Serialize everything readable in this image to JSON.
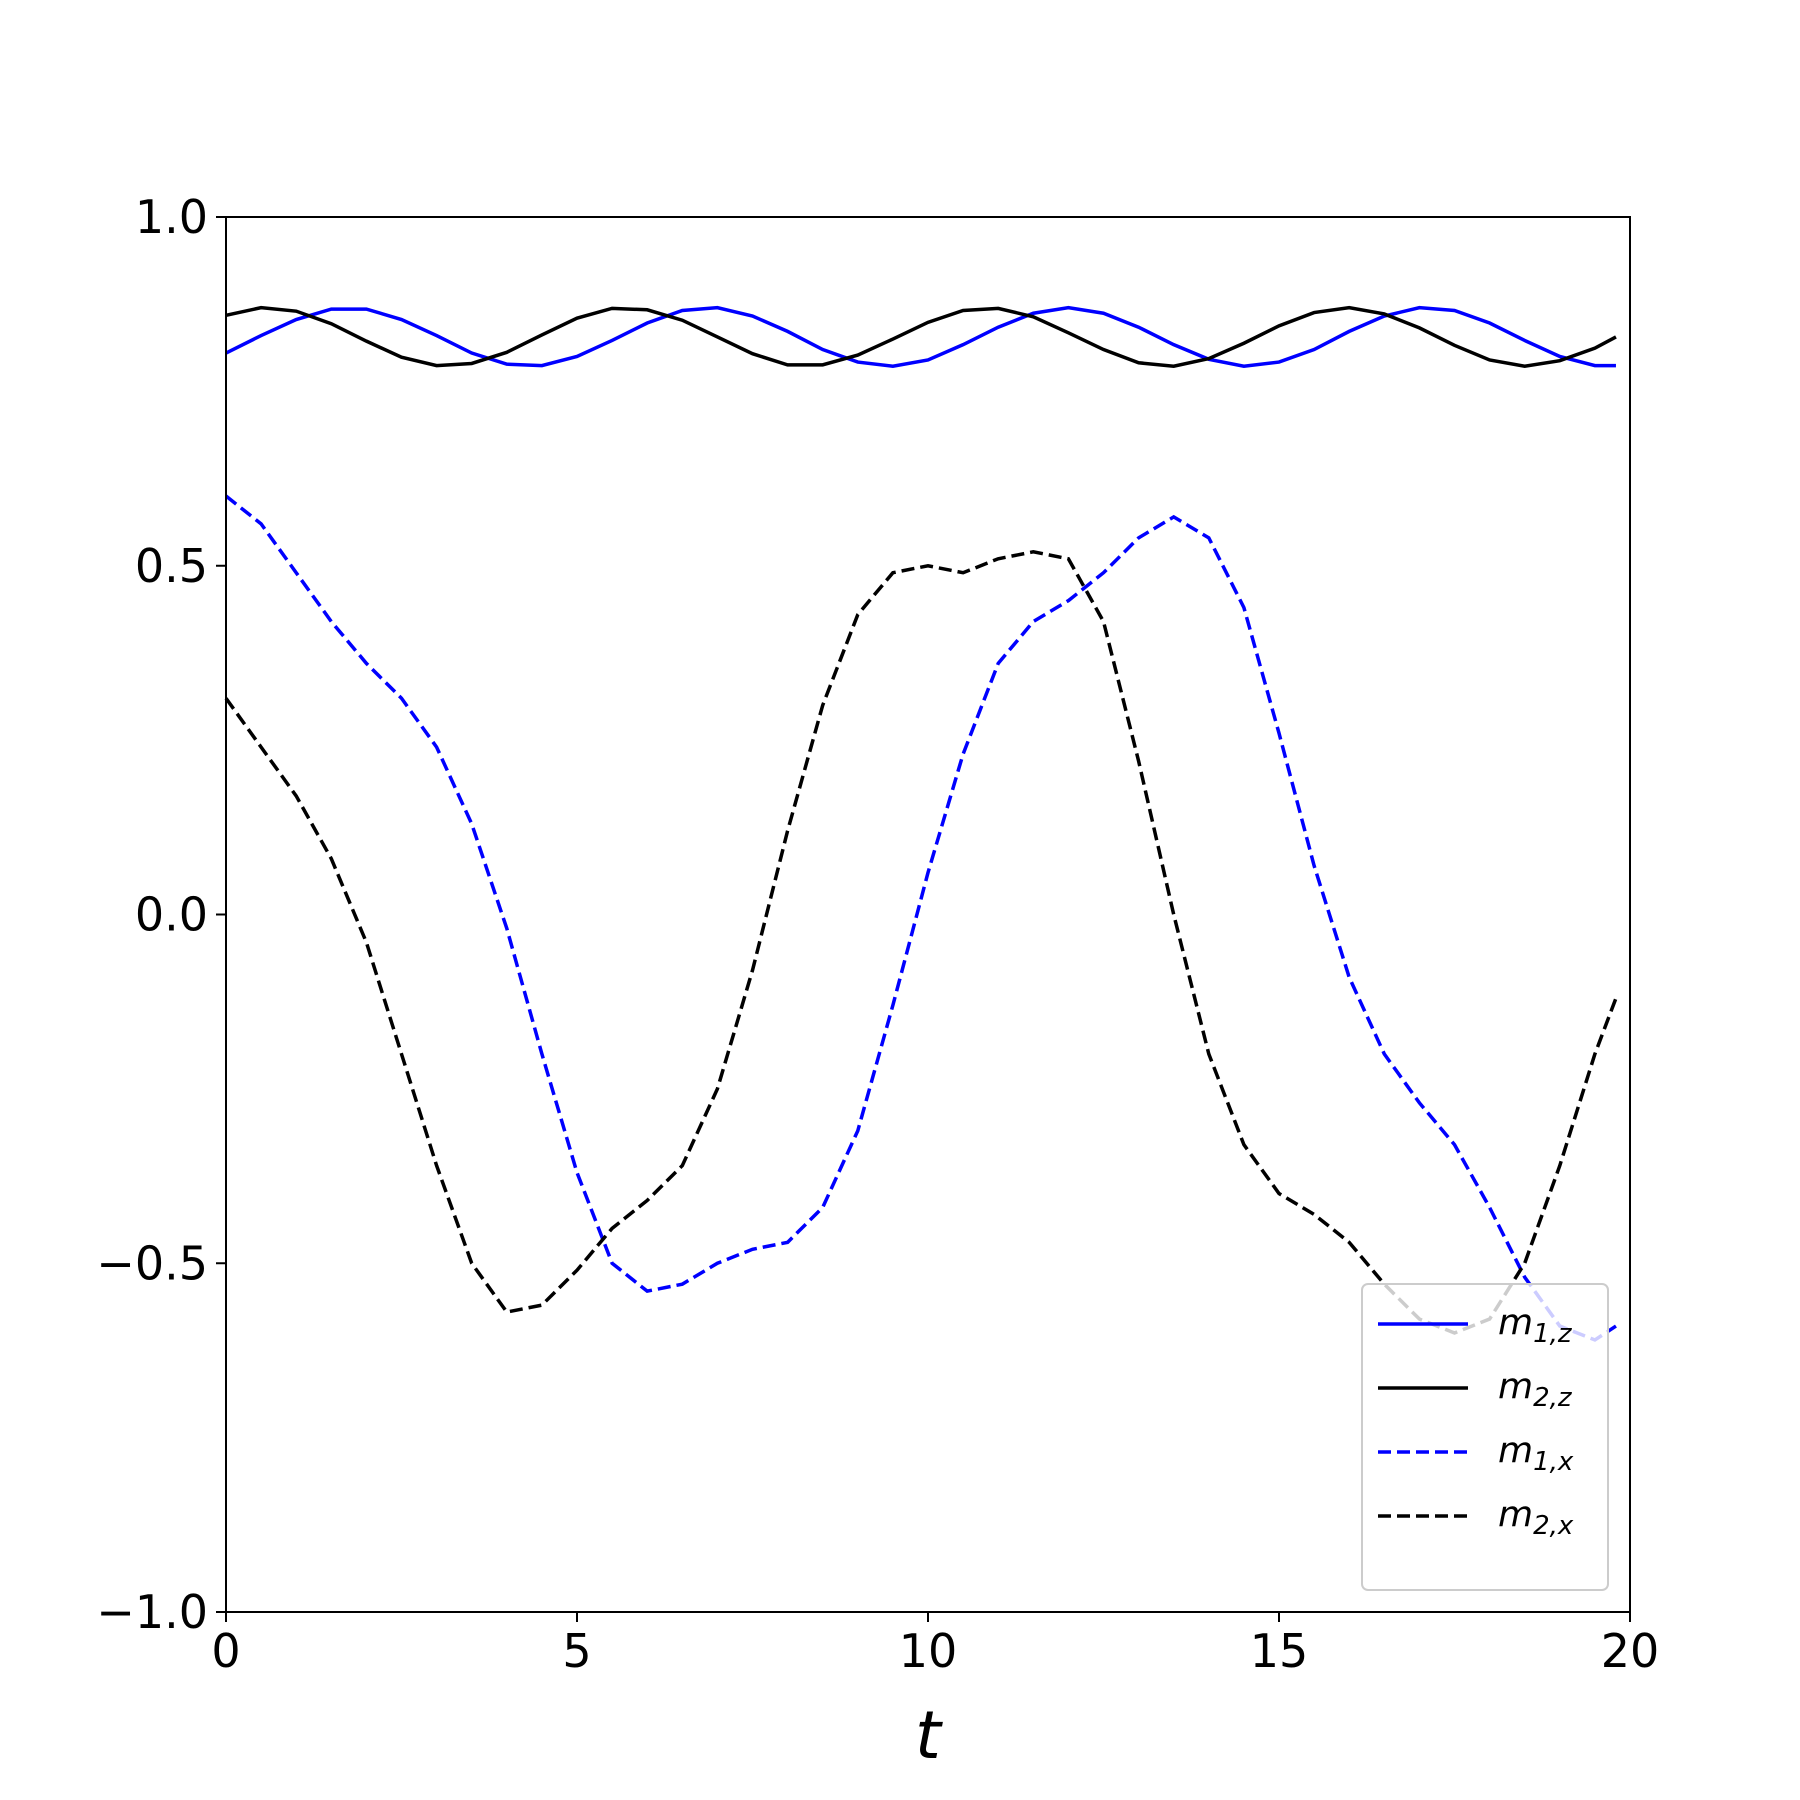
{
  "chart_data": {
    "type": "line",
    "xlabel": "t",
    "x": [
      0,
      0.5,
      1,
      1.5,
      2,
      2.5,
      3,
      3.5,
      4,
      4.5,
      5,
      5.5,
      6,
      6.5,
      7,
      7.5,
      8,
      8.5,
      9,
      9.5,
      10,
      10.5,
      11,
      11.5,
      12,
      12.5,
      13,
      13.5,
      14,
      14.5,
      15,
      15.5,
      16,
      16.5,
      17,
      17.5,
      18,
      18.5,
      19,
      19.5,
      19.8
    ],
    "series": [
      {
        "name": "m1,z",
        "color": "#0000ff",
        "dash": false,
        "values": [
          0.805,
          0.83,
          0.853,
          0.868,
          0.868,
          0.853,
          0.83,
          0.805,
          0.789,
          0.787,
          0.8,
          0.823,
          0.848,
          0.866,
          0.87,
          0.858,
          0.836,
          0.81,
          0.792,
          0.786,
          0.795,
          0.817,
          0.842,
          0.862,
          0.87,
          0.862,
          0.842,
          0.817,
          0.796,
          0.786,
          0.792,
          0.81,
          0.836,
          0.858,
          0.87,
          0.866,
          0.848,
          0.823,
          0.8,
          0.787,
          0.787
        ]
      },
      {
        "name": "m2,z",
        "color": "#000000",
        "dash": false,
        "values": [
          0.859,
          0.87,
          0.865,
          0.847,
          0.822,
          0.799,
          0.787,
          0.79,
          0.806,
          0.831,
          0.855,
          0.869,
          0.867,
          0.852,
          0.828,
          0.804,
          0.788,
          0.788,
          0.802,
          0.825,
          0.849,
          0.866,
          0.869,
          0.857,
          0.834,
          0.81,
          0.791,
          0.786,
          0.797,
          0.819,
          0.844,
          0.863,
          0.87,
          0.861,
          0.841,
          0.816,
          0.795,
          0.786,
          0.794,
          0.812,
          0.828
        ]
      },
      {
        "name": "m1,x",
        "color": "#0000ff",
        "dash": true,
        "values": [
          0.6,
          0.56,
          0.49,
          0.42,
          0.36,
          0.31,
          0.24,
          0.13,
          -0.02,
          -0.2,
          -0.37,
          -0.5,
          -0.54,
          -0.53,
          -0.5,
          -0.48,
          -0.47,
          -0.42,
          -0.31,
          -0.13,
          0.06,
          0.23,
          0.36,
          0.42,
          0.45,
          0.49,
          0.54,
          0.57,
          0.54,
          0.44,
          0.26,
          0.07,
          -0.09,
          -0.2,
          -0.27,
          -0.33,
          -0.42,
          -0.52,
          -0.59,
          -0.61,
          -0.59
        ]
      },
      {
        "name": "m2,x",
        "color": "#000000",
        "dash": true,
        "values": [
          0.31,
          0.24,
          0.17,
          0.08,
          -0.04,
          -0.2,
          -0.36,
          -0.5,
          -0.57,
          -0.56,
          -0.51,
          -0.45,
          -0.41,
          -0.36,
          -0.25,
          -0.08,
          0.12,
          0.3,
          0.43,
          0.49,
          0.5,
          0.49,
          0.51,
          0.52,
          0.51,
          0.42,
          0.22,
          0.0,
          -0.2,
          -0.33,
          -0.4,
          -0.43,
          -0.47,
          -0.53,
          -0.58,
          -0.6,
          -0.58,
          -0.5,
          -0.36,
          -0.2,
          -0.12
        ]
      }
    ],
    "xlim": [
      0,
      20
    ],
    "xticks": [
      0,
      5,
      10,
      15,
      20
    ],
    "ylim": [
      -1,
      1
    ],
    "yticks": [
      {
        "value": -1,
        "label": "−1.0"
      },
      {
        "value": -0.5,
        "label": "−0.5"
      },
      {
        "value": 0,
        "label": "0.0"
      },
      0.5,
      {
        "value": 1,
        "label": "1.0"
      }
    ],
    "grid": false,
    "legend": "lower right"
  }
}
